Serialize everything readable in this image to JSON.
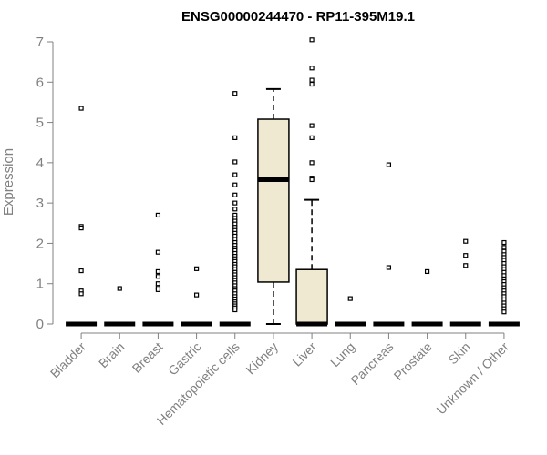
{
  "chart_data": {
    "type": "boxplot",
    "title": "ENSG00000244470 - RP11-395M19.1",
    "ylabel": "Expression",
    "xlabel": "",
    "ylim": [
      0,
      7
    ],
    "yticks": [
      0,
      1,
      2,
      3,
      4,
      5,
      6,
      7
    ],
    "box_fill": "#efe9d2",
    "categories": [
      "Bladder",
      "Brain",
      "Breast",
      "Gastric",
      "Hematopoietic cells",
      "Kidney",
      "Liver",
      "Lung",
      "Pancreas",
      "Prostate",
      "Skin",
      "Unknown / Other"
    ],
    "series": [
      {
        "category": "Bladder",
        "min": 0,
        "q1": 0,
        "median": 0,
        "q3": 0,
        "max": 0,
        "outliers": [
          5.35,
          2.42,
          2.38,
          1.32,
          0.82,
          0.75
        ]
      },
      {
        "category": "Brain",
        "min": 0,
        "q1": 0,
        "median": 0,
        "q3": 0,
        "max": 0,
        "outliers": [
          0.88
        ]
      },
      {
        "category": "Breast",
        "min": 0,
        "q1": 0,
        "median": 0,
        "q3": 0,
        "max": 0,
        "outliers": [
          2.7,
          1.78,
          1.3,
          1.18,
          1.0,
          0.9,
          0.85
        ]
      },
      {
        "category": "Gastric",
        "min": 0,
        "q1": 0,
        "median": 0,
        "q3": 0,
        "max": 0,
        "outliers": [
          1.37,
          0.72
        ]
      },
      {
        "category": "Hematopoietic cells",
        "min": 0,
        "q1": 0,
        "median": 0,
        "q3": 0,
        "max": 0,
        "outliers": [
          5.72,
          4.62,
          4.02,
          3.7,
          3.45,
          3.2,
          3.0,
          2.85,
          2.7,
          2.62,
          2.55,
          2.48,
          2.4,
          2.32,
          2.25,
          2.18,
          2.1,
          2.02,
          1.95,
          1.88,
          1.82,
          1.75,
          1.68,
          1.62,
          1.55,
          1.48,
          1.42,
          1.35,
          1.28,
          1.22,
          1.15,
          1.08,
          1.02,
          0.95,
          0.88,
          0.82,
          0.75,
          0.68,
          0.62,
          0.55,
          0.5,
          0.45,
          0.4,
          0.35
        ]
      },
      {
        "category": "Kidney",
        "min": 0,
        "q1": 1.04,
        "median": 3.58,
        "q3": 5.08,
        "max": 5.83,
        "outliers": []
      },
      {
        "category": "Liver",
        "min": 0,
        "q1": 0,
        "median": 0,
        "q3": 1.35,
        "max": 3.08,
        "outliers": [
          7.05,
          6.35,
          6.05,
          5.95,
          4.92,
          4.62,
          4.0,
          3.62,
          3.58
        ]
      },
      {
        "category": "Lung",
        "min": 0,
        "q1": 0,
        "median": 0,
        "q3": 0,
        "max": 0,
        "outliers": [
          0.63
        ]
      },
      {
        "category": "Pancreas",
        "min": 0,
        "q1": 0,
        "median": 0,
        "q3": 0,
        "max": 0,
        "outliers": [
          3.95,
          1.4
        ]
      },
      {
        "category": "Prostate",
        "min": 0,
        "q1": 0,
        "median": 0,
        "q3": 0,
        "max": 0,
        "outliers": [
          1.3
        ]
      },
      {
        "category": "Skin",
        "min": 0,
        "q1": 0,
        "median": 0,
        "q3": 0,
        "max": 0,
        "outliers": [
          2.05,
          1.7,
          1.45
        ]
      },
      {
        "category": "Unknown / Other",
        "min": 0,
        "q1": 0,
        "median": 0,
        "q3": 0,
        "max": 0,
        "outliers": [
          2.02,
          1.9,
          1.8,
          1.72,
          1.65,
          1.58,
          1.5,
          1.42,
          1.35,
          1.28,
          1.2,
          1.12,
          1.05,
          0.98,
          0.9,
          0.82,
          0.75,
          0.68,
          0.6,
          0.52,
          0.45,
          0.38,
          0.3
        ]
      }
    ]
  }
}
